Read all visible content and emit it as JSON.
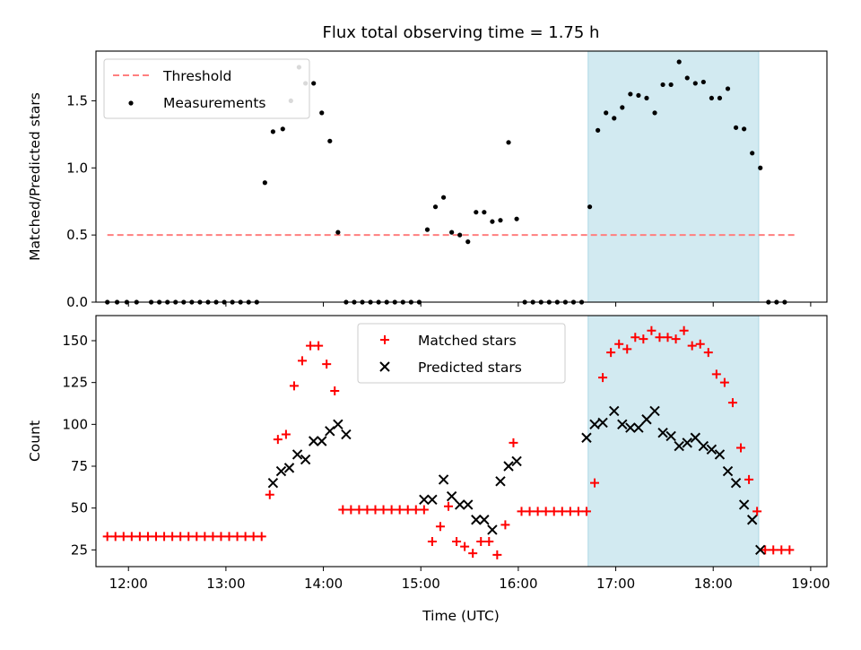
{
  "chart_data": {
    "title": "Flux total observing time = 1.75 h",
    "xlabel": "Time (UTC)",
    "x_ticks": [
      "12:00",
      "13:00",
      "14:00",
      "15:00",
      "16:00",
      "17:00",
      "18:00",
      "19:00"
    ],
    "xlim": [
      "11:40",
      "19:10"
    ],
    "shaded_region": {
      "start": "16:43",
      "end": "18:28",
      "color": "#add8e6"
    },
    "colors": {
      "threshold": "#ff7f7f",
      "measurements": "#000000",
      "matched": "#ff0000",
      "predicted": "#000000",
      "shade": "#add8e6"
    },
    "panels": [
      {
        "type": "scatter",
        "ylabel": "Matched/Predicted stars",
        "ylim": [
          0,
          1.87
        ],
        "y_ticks": [
          "0.0",
          "0.5",
          "1.0",
          "1.5"
        ],
        "legend_position": "upper-left",
        "series": [
          {
            "name": "Threshold",
            "kind": "dashed-line",
            "x": [
              "11:47",
              "18:50"
            ],
            "y": [
              0.5,
              0.5
            ]
          },
          {
            "name": "Measurements",
            "kind": "scatter",
            "x": [
              "11:47",
              "11:53",
              "11:59",
              "12:05",
              "12:14",
              "12:19",
              "12:24",
              "12:29",
              "12:34",
              "12:39",
              "12:44",
              "12:49",
              "12:54",
              "12:59",
              "13:04",
              "13:09",
              "13:14",
              "13:19",
              "13:24",
              "13:29",
              "13:35",
              "13:40",
              "13:45",
              "13:49",
              "13:54",
              "13:59",
              "14:04",
              "14:09",
              "14:14",
              "14:19",
              "14:24",
              "14:29",
              "14:34",
              "14:39",
              "14:44",
              "14:49",
              "14:54",
              "14:59",
              "15:04",
              "15:09",
              "15:14",
              "15:19",
              "15:24",
              "15:29",
              "15:34",
              "15:39",
              "15:44",
              "15:49",
              "15:54",
              "15:59",
              "16:04",
              "16:09",
              "16:14",
              "16:19",
              "16:24",
              "16:29",
              "16:34",
              "16:39",
              "16:44",
              "16:49",
              "16:54",
              "16:59",
              "17:04",
              "17:09",
              "17:14",
              "17:19",
              "17:24",
              "17:29",
              "17:34",
              "17:39",
              "17:44",
              "17:49",
              "17:54",
              "17:59",
              "18:04",
              "18:09",
              "18:14",
              "18:19",
              "18:24",
              "18:29",
              "18:34",
              "18:39",
              "18:44"
            ],
            "y": [
              0,
              0,
              0,
              0,
              0,
              0,
              0,
              0,
              0,
              0,
              0,
              0,
              0,
              0,
              0,
              0,
              0,
              0,
              0.89,
              1.27,
              1.29,
              1.5,
              1.75,
              1.63,
              1.63,
              1.41,
              1.2,
              0.52,
              0,
              0,
              0,
              0,
              0,
              0,
              0,
              0,
              0,
              0,
              0.54,
              0.71,
              0.78,
              0.52,
              0.5,
              0.45,
              0.67,
              0.67,
              0.6,
              0.61,
              1.19,
              0.62,
              0,
              0,
              0,
              0,
              0,
              0,
              0,
              0,
              0.71,
              1.28,
              1.41,
              1.37,
              1.45,
              1.55,
              1.54,
              1.52,
              1.41,
              1.62,
              1.62,
              1.79,
              1.67,
              1.63,
              1.64,
              1.52,
              1.52,
              1.59,
              1.3,
              1.29,
              1.11,
              1.0,
              0,
              0,
              0
            ]
          }
        ]
      },
      {
        "type": "scatter",
        "ylabel": "Count",
        "ylim": [
          15,
          165
        ],
        "y_ticks": [
          "25",
          "50",
          "75",
          "100",
          "125",
          "150"
        ],
        "legend_position": "upper-center",
        "series": [
          {
            "name": "Matched stars",
            "marker": "+",
            "x": [
              "11:47",
              "11:52",
              "11:57",
              "12:02",
              "12:07",
              "12:12",
              "12:17",
              "12:22",
              "12:27",
              "12:32",
              "12:37",
              "12:42",
              "12:47",
              "12:52",
              "12:57",
              "13:02",
              "13:07",
              "13:12",
              "13:17",
              "13:22",
              "13:27",
              "13:32",
              "13:37",
              "13:42",
              "13:47",
              "13:52",
              "13:57",
              "14:02",
              "14:07",
              "14:12",
              "14:17",
              "14:22",
              "14:27",
              "14:32",
              "14:37",
              "14:42",
              "14:47",
              "14:52",
              "14:57",
              "15:02",
              "15:07",
              "15:12",
              "15:17",
              "15:22",
              "15:27",
              "15:32",
              "15:37",
              "15:42",
              "15:47",
              "15:52",
              "15:57",
              "16:02",
              "16:07",
              "16:12",
              "16:17",
              "16:22",
              "16:27",
              "16:32",
              "16:37",
              "16:42",
              "16:47",
              "16:52",
              "16:57",
              "17:02",
              "17:07",
              "17:12",
              "17:17",
              "17:22",
              "17:27",
              "17:32",
              "17:37",
              "17:42",
              "17:47",
              "17:52",
              "17:57",
              "18:02",
              "18:07",
              "18:12",
              "18:17",
              "18:22",
              "18:27",
              "18:32",
              "18:37",
              "18:42",
              "18:47"
            ],
            "y": [
              33,
              33,
              33,
              33,
              33,
              33,
              33,
              33,
              33,
              33,
              33,
              33,
              33,
              33,
              33,
              33,
              33,
              33,
              33,
              33,
              58,
              91,
              94,
              123,
              138,
              147,
              147,
              136,
              120,
              49,
              49,
              49,
              49,
              49,
              49,
              49,
              49,
              49,
              49,
              49,
              30,
              39,
              51,
              30,
              27,
              23,
              30,
              30,
              22,
              40,
              89,
              48,
              48,
              48,
              48,
              48,
              48,
              48,
              48,
              48,
              65,
              128,
              143,
              148,
              145,
              152,
              151,
              156,
              152,
              152,
              151,
              156,
              147,
              148,
              143,
              130,
              125,
              113,
              86,
              67,
              48,
              25,
              25,
              25,
              25
            ]
          },
          {
            "name": "Predicted stars",
            "marker": "x",
            "x": [
              "13:29",
              "13:34",
              "13:39",
              "13:44",
              "13:49",
              "13:54",
              "13:59",
              "14:04",
              "14:09",
              "14:14",
              "15:02",
              "15:07",
              "15:14",
              "15:19",
              "15:24",
              "15:29",
              "15:34",
              "15:39",
              "15:44",
              "15:49",
              "15:54",
              "15:59",
              "16:42",
              "16:47",
              "16:52",
              "16:59",
              "17:04",
              "17:09",
              "17:14",
              "17:19",
              "17:24",
              "17:29",
              "17:34",
              "17:39",
              "17:44",
              "17:49",
              "17:54",
              "17:59",
              "18:04",
              "18:09",
              "18:14",
              "18:19",
              "18:24",
              "18:29"
            ],
            "y": [
              65,
              72,
              74,
              82,
              79,
              90,
              90,
              96,
              100,
              94,
              55,
              55,
              67,
              57,
              52,
              52,
              43,
              43,
              37,
              66,
              75,
              78,
              92,
              100,
              101,
              108,
              100,
              98,
              98,
              103,
              108,
              95,
              93,
              87,
              89,
              92,
              87,
              85,
              82,
              72,
              65,
              52,
              43,
              25
            ]
          }
        ]
      }
    ]
  }
}
